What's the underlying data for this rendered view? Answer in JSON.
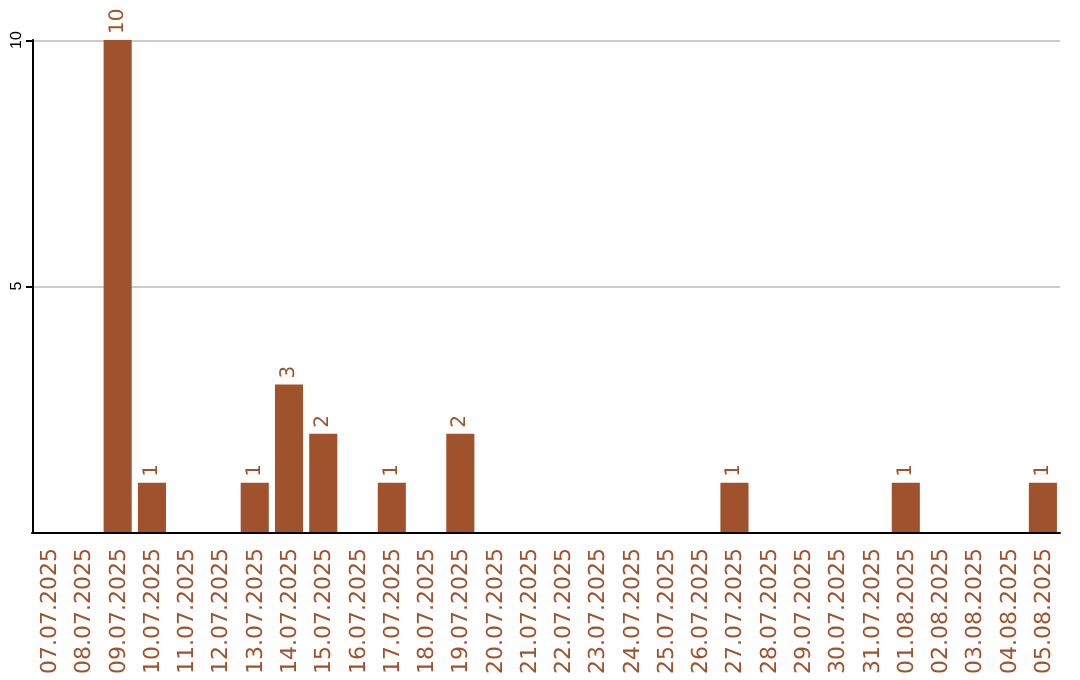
{
  "chart_data": {
    "type": "bar",
    "categories": [
      "07.07.2025",
      "08.07.2025",
      "09.07.2025",
      "10.07.2025",
      "11.07.2025",
      "12.07.2025",
      "13.07.2025",
      "14.07.2025",
      "15.07.2025",
      "16.07.2025",
      "17.07.2025",
      "18.07.2025",
      "19.07.2025",
      "20.07.2025",
      "21.07.2025",
      "22.07.2025",
      "23.07.2025",
      "24.07.2025",
      "25.07.2025",
      "26.07.2025",
      "27.07.2025",
      "28.07.2025",
      "29.07.2025",
      "30.07.2025",
      "31.07.2025",
      "01.08.2025",
      "02.08.2025",
      "03.08.2025",
      "04.08.2025",
      "05.08.2025"
    ],
    "values": [
      0,
      0,
      10,
      1,
      0,
      0,
      1,
      3,
      2,
      0,
      1,
      0,
      2,
      0,
      0,
      0,
      0,
      0,
      0,
      0,
      1,
      0,
      0,
      0,
      0,
      1,
      0,
      0,
      0,
      1
    ],
    "value_labels": [
      null,
      null,
      "10",
      "1",
      null,
      null,
      "1",
      "3",
      "2",
      null,
      "1",
      null,
      "2",
      null,
      null,
      null,
      null,
      null,
      null,
      null,
      "1",
      null,
      null,
      null,
      null,
      "1",
      null,
      null,
      null,
      "1"
    ],
    "color": "#a0522d",
    "ylim": [
      0,
      10
    ],
    "yticks": [
      5,
      10
    ],
    "grid": "y"
  }
}
